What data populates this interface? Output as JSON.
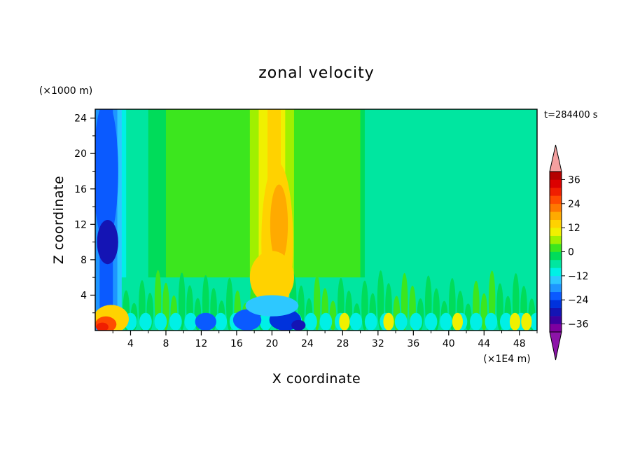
{
  "chart_data": {
    "type": "heatmap",
    "title": "zonal velocity",
    "xlabel": "X coordinate",
    "ylabel": "Z coordinate",
    "x_unit": "(×1E4 m)",
    "y_unit": "(×1000 m)",
    "time_label": "t=284400 s",
    "xlim": [
      0,
      50
    ],
    "ylim": [
      0,
      25
    ],
    "x_ticks": [
      "4",
      "8",
      "12",
      "16",
      "20",
      "24",
      "28",
      "32",
      "36",
      "40",
      "44",
      "48"
    ],
    "y_ticks": [
      "4",
      "8",
      "12",
      "16",
      "20",
      "24"
    ],
    "colorbar": {
      "min": -40,
      "max": 40,
      "step": 4,
      "tick_labels": [
        "36",
        "24",
        "12",
        "0",
        "−12",
        "−24",
        "−36"
      ],
      "tick_values": [
        36,
        24,
        12,
        0,
        -12,
        -24,
        -36
      ],
      "colors": [
        "#7d00a0",
        "#3c00a0",
        "#1414b4",
        "#0032dc",
        "#0a5aff",
        "#1e96ff",
        "#2dc8ff",
        "#00f0e6",
        "#00e6a0",
        "#00dc5a",
        "#3ce61e",
        "#a0f000",
        "#f0f000",
        "#ffd200",
        "#ffaa00",
        "#ff7800",
        "#ff4b00",
        "#f01e00",
        "#dc0000",
        "#b40000"
      ],
      "over_color": "#f5a0a0",
      "under_color": "#8c14a8"
    },
    "field_profile_u_by_x": {
      "x": [
        0,
        1,
        2,
        3,
        4,
        6,
        8,
        10,
        12,
        13,
        14,
        16,
        18,
        19,
        20,
        21,
        22,
        24,
        26,
        28,
        30,
        31,
        32,
        35,
        40,
        45,
        50
      ],
      "u": [
        -18,
        -24,
        -20,
        -12,
        -6,
        -4,
        0,
        2,
        4,
        2,
        0,
        0,
        6,
        10,
        14,
        12,
        6,
        0,
        0,
        2,
        0,
        -6,
        -8,
        -8,
        -8,
        -8,
        -8
      ]
    }
  }
}
